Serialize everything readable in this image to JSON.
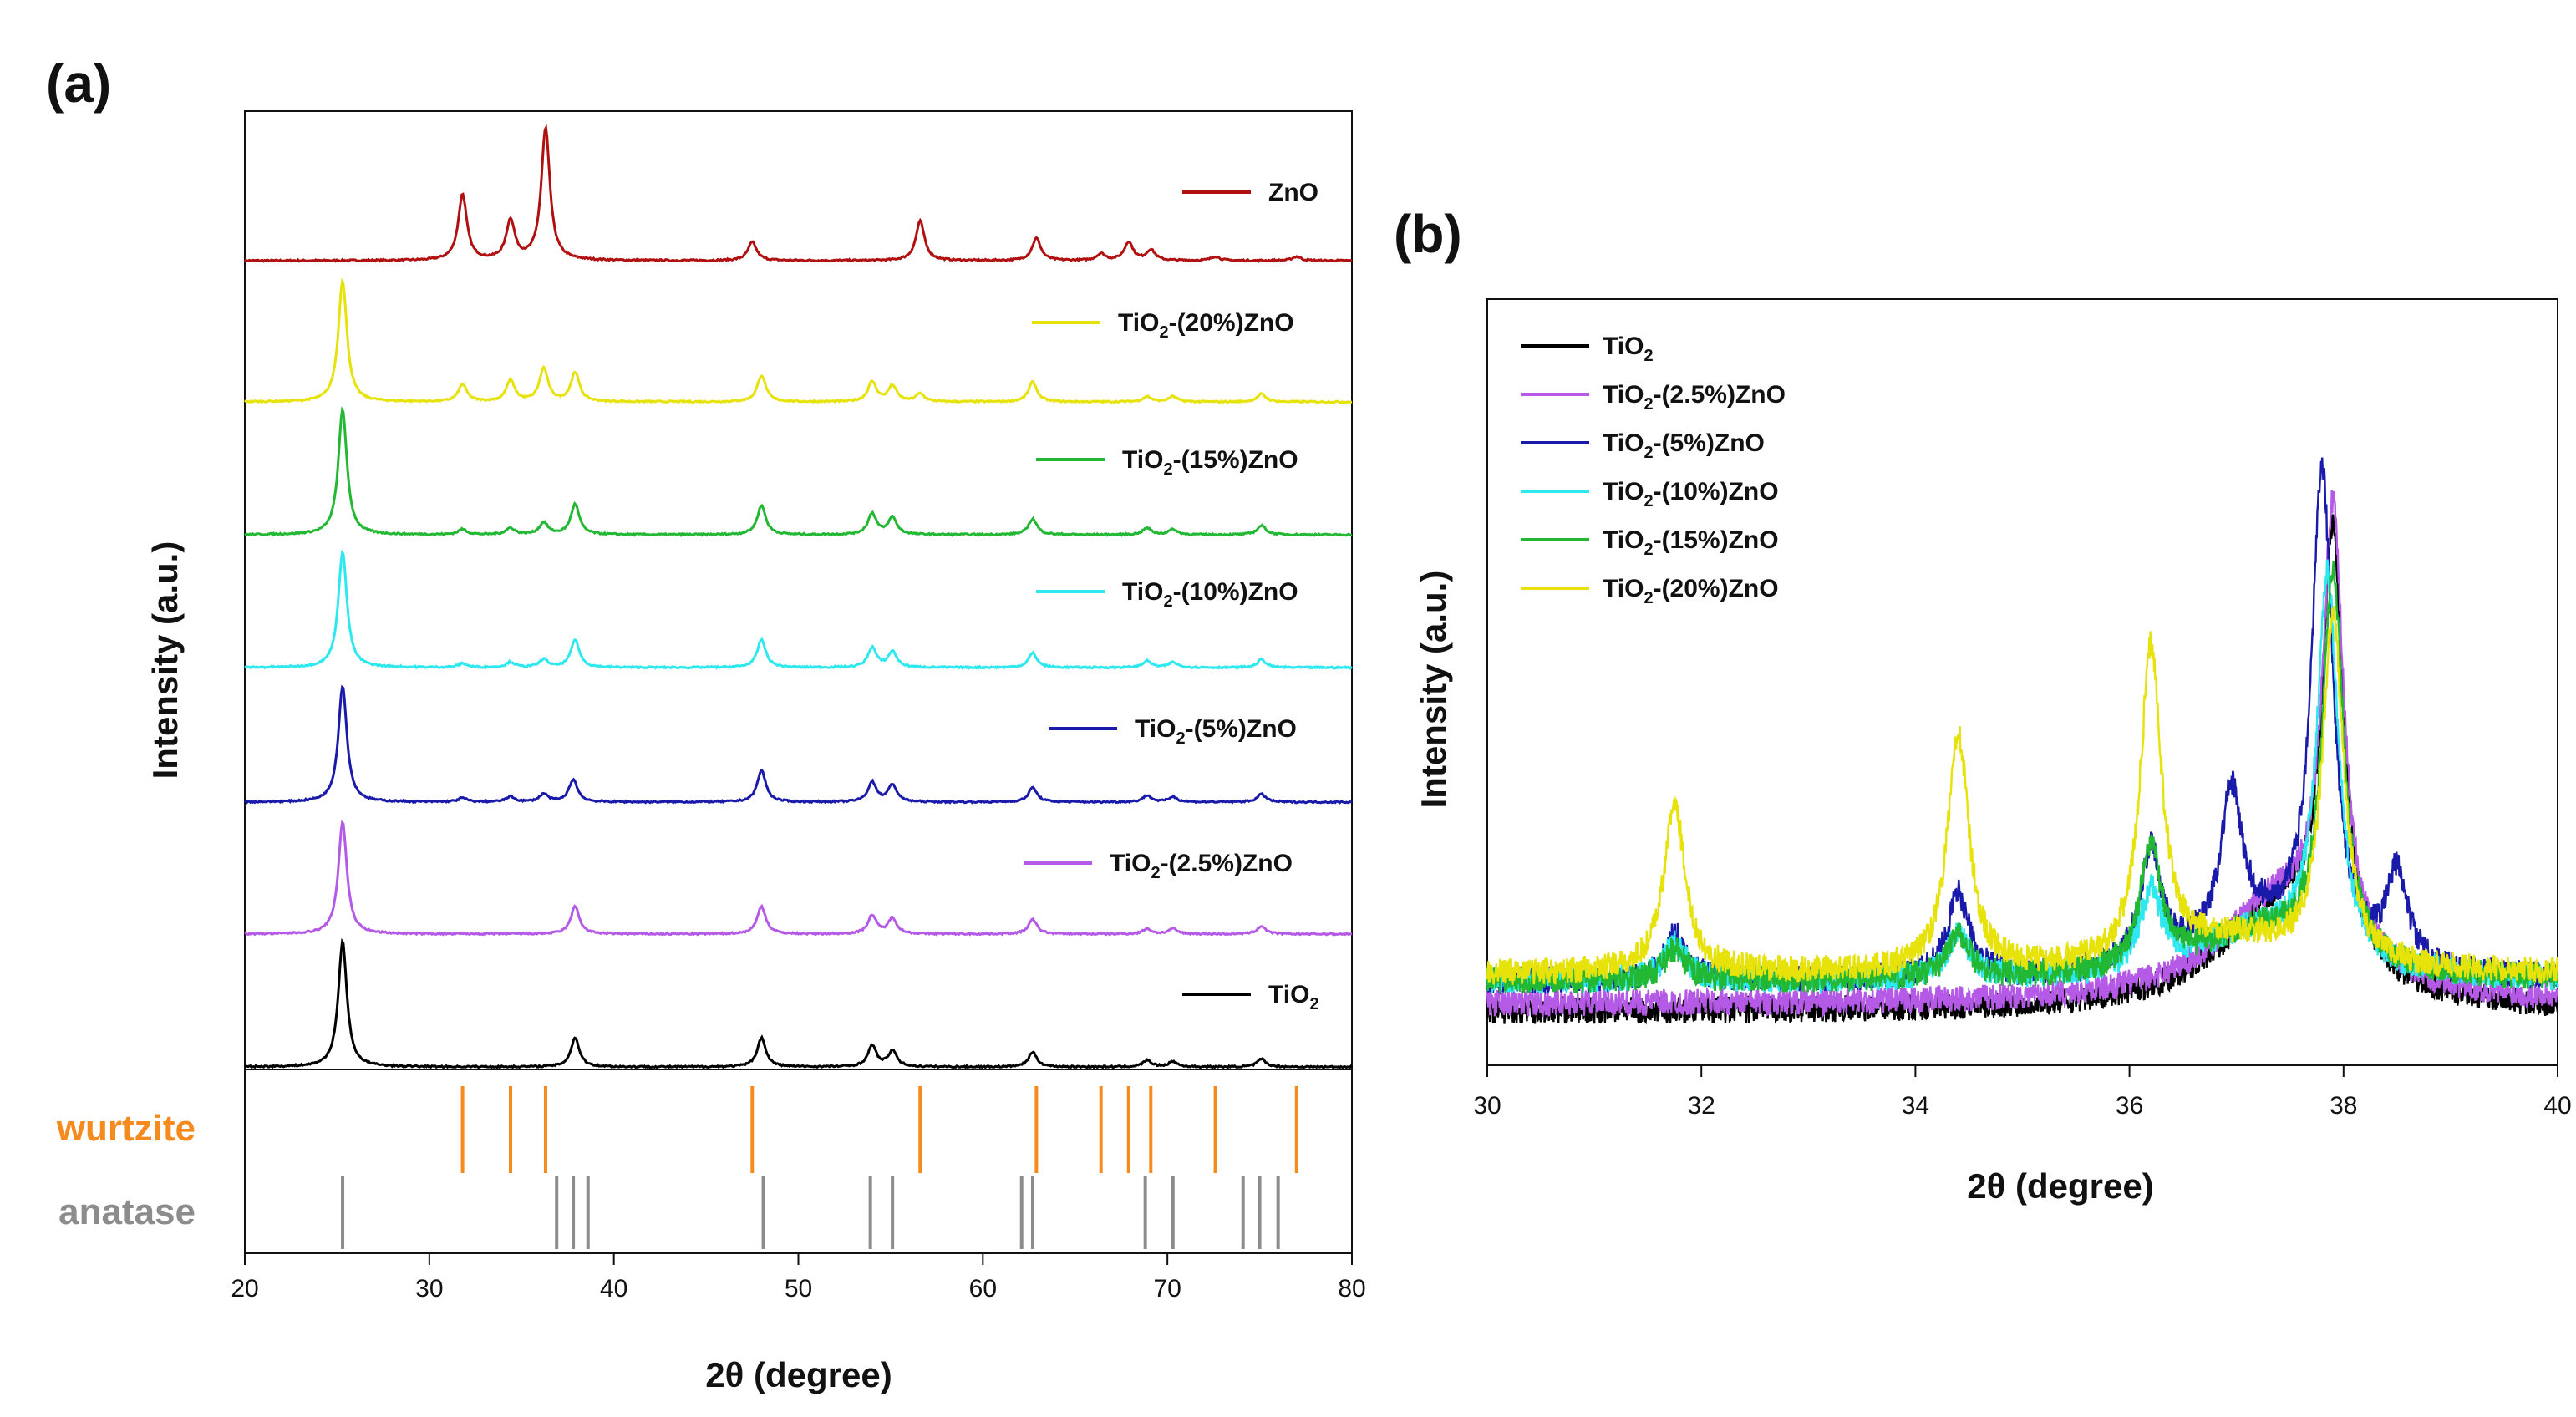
{
  "figure": {
    "panel_a_label": "(a)",
    "panel_b_label": "(b)"
  },
  "chart_data": [
    {
      "type": "line",
      "panel": "(a)",
      "xlabel": "2θ (degree)",
      "ylabel": "Intensity (a.u.)",
      "xlim": [
        20,
        80
      ],
      "xticks": [
        20,
        30,
        40,
        50,
        60,
        70,
        80
      ],
      "yticks_shown": false,
      "layout": "stacked-offset",
      "series": [
        {
          "name": "ZnO",
          "color": "#b01010",
          "name_main": "ZnO",
          "name_sub": "",
          "name_rest": "",
          "peaks": [
            [
              31.8,
              0.5
            ],
            [
              34.4,
              0.3
            ],
            [
              36.3,
              1.0
            ],
            [
              47.5,
              0.14
            ],
            [
              56.6,
              0.3
            ],
            [
              62.9,
              0.17
            ],
            [
              66.4,
              0.05
            ],
            [
              67.9,
              0.14
            ],
            [
              69.1,
              0.08
            ],
            [
              72.6,
              0.03
            ],
            [
              77.0,
              0.03
            ]
          ]
        },
        {
          "name": "TiO2-(20%)ZnO",
          "color": "#e6e20a",
          "name_main": "TiO",
          "name_sub": "2",
          "name_rest": "-(20%)ZnO",
          "peaks": [
            [
              25.3,
              0.92
            ],
            [
              31.8,
              0.13
            ],
            [
              34.4,
              0.16
            ],
            [
              36.2,
              0.25
            ],
            [
              37.9,
              0.22
            ],
            [
              48.0,
              0.2
            ],
            [
              54.0,
              0.15
            ],
            [
              55.1,
              0.12
            ],
            [
              56.6,
              0.06
            ],
            [
              62.7,
              0.15
            ],
            [
              68.9,
              0.04
            ],
            [
              70.3,
              0.04
            ],
            [
              75.1,
              0.06
            ]
          ]
        },
        {
          "name": "TiO2-(15%)ZnO",
          "color": "#22b833",
          "name_main": "TiO",
          "name_sub": "2",
          "name_rest": "-(15%)ZnO",
          "peaks": [
            [
              25.3,
              0.95
            ],
            [
              31.8,
              0.04
            ],
            [
              34.4,
              0.05
            ],
            [
              36.2,
              0.09
            ],
            [
              37.9,
              0.23
            ],
            [
              48.0,
              0.22
            ],
            [
              54.0,
              0.16
            ],
            [
              55.1,
              0.13
            ],
            [
              62.7,
              0.12
            ],
            [
              68.9,
              0.05
            ],
            [
              70.3,
              0.04
            ],
            [
              75.1,
              0.07
            ]
          ]
        },
        {
          "name": "TiO2-(10%)ZnO",
          "color": "#2ee8f0",
          "name_main": "TiO",
          "name_sub": "2",
          "name_rest": "-(10%)ZnO",
          "peaks": [
            [
              25.3,
              0.88
            ],
            [
              31.8,
              0.03
            ],
            [
              34.4,
              0.04
            ],
            [
              36.2,
              0.06
            ],
            [
              37.9,
              0.21
            ],
            [
              48.0,
              0.21
            ],
            [
              54.0,
              0.15
            ],
            [
              55.1,
              0.12
            ],
            [
              62.7,
              0.11
            ],
            [
              68.9,
              0.05
            ],
            [
              70.3,
              0.04
            ],
            [
              75.1,
              0.06
            ]
          ]
        },
        {
          "name": "TiO2-(5%)ZnO",
          "color": "#1a1aaa",
          "name_main": "TiO",
          "name_sub": "2",
          "name_rest": "-(5%)ZnO",
          "peaks": [
            [
              25.3,
              0.88
            ],
            [
              31.8,
              0.03
            ],
            [
              34.4,
              0.04
            ],
            [
              36.2,
              0.06
            ],
            [
              37.8,
              0.17
            ],
            [
              48.0,
              0.24
            ],
            [
              54.0,
              0.15
            ],
            [
              55.1,
              0.13
            ],
            [
              62.7,
              0.11
            ],
            [
              68.9,
              0.05
            ],
            [
              70.3,
              0.04
            ],
            [
              75.1,
              0.06
            ]
          ]
        },
        {
          "name": "TiO2-(2.5%)ZnO",
          "color": "#b45ae6",
          "name_main": "TiO",
          "name_sub": "2",
          "name_rest": "-(2.5%)ZnO",
          "peaks": [
            [
              25.3,
              0.85
            ],
            [
              37.9,
              0.21
            ],
            [
              48.0,
              0.21
            ],
            [
              54.0,
              0.14
            ],
            [
              55.1,
              0.12
            ],
            [
              62.7,
              0.11
            ],
            [
              68.9,
              0.04
            ],
            [
              70.3,
              0.04
            ],
            [
              75.1,
              0.06
            ]
          ]
        },
        {
          "name": "TiO2",
          "color": "#000000",
          "name_main": "TiO",
          "name_sub": "2",
          "name_rest": "",
          "peaks": [
            [
              25.3,
              0.95
            ],
            [
              37.9,
              0.22
            ],
            [
              48.0,
              0.22
            ],
            [
              54.0,
              0.16
            ],
            [
              55.1,
              0.12
            ],
            [
              62.7,
              0.11
            ],
            [
              68.9,
              0.05
            ],
            [
              70.3,
              0.04
            ],
            [
              75.1,
              0.06
            ]
          ]
        }
      ],
      "reference_patterns": [
        {
          "name": "wurtzite",
          "color": "#f58a1f",
          "positions": [
            31.8,
            34.4,
            36.3,
            47.5,
            56.6,
            62.9,
            66.4,
            67.9,
            69.1,
            72.6,
            77.0
          ]
        },
        {
          "name": "anatase",
          "color": "#8c8c8c",
          "positions": [
            25.3,
            36.9,
            37.8,
            38.6,
            48.1,
            53.9,
            55.1,
            62.1,
            62.7,
            68.8,
            70.3,
            74.1,
            75.0,
            76.0
          ]
        }
      ]
    },
    {
      "type": "line",
      "panel": "(b)",
      "xlabel": "2θ (degree)",
      "ylabel": "Intensity (a.u.)",
      "xlim": [
        30,
        40
      ],
      "xticks": [
        30,
        32,
        34,
        36,
        38,
        40
      ],
      "yticks_shown": false,
      "legend_position": "top-left",
      "series": [
        {
          "name": "TiO2",
          "color": "#000000",
          "name_main": "TiO",
          "name_sub": "2",
          "name_rest": "",
          "baseline": 0.09,
          "peaks": [
            [
              37.9,
              0.55
            ]
          ],
          "broad": [
            37.4,
            0.13
          ]
        },
        {
          "name": "TiO2-(2.5%)ZnO",
          "color": "#b45ae6",
          "name_main": "TiO",
          "name_sub": "2",
          "name_rest": "-(2.5%)ZnO",
          "baseline": 0.1,
          "peaks": [
            [
              37.9,
              0.57
            ]
          ],
          "broad": [
            37.4,
            0.13
          ]
        },
        {
          "name": "TiO2-(5%)ZnO",
          "color": "#1a1aaa",
          "name_main": "TiO",
          "name_sub": "2",
          "name_rest": "-(5%)ZnO",
          "baseline": 0.13,
          "peaks": [
            [
              31.75,
              0.06
            ],
            [
              34.4,
              0.11
            ],
            [
              36.2,
              0.15
            ],
            [
              36.95,
              0.19
            ],
            [
              37.8,
              0.63
            ],
            [
              38.5,
              0.12
            ]
          ],
          "broad": [
            37.2,
            0.06
          ]
        },
        {
          "name": "TiO2-(10%)ZnO",
          "color": "#2ee8f0",
          "name_main": "TiO",
          "name_sub": "2",
          "name_rest": "-(10%)ZnO",
          "baseline": 0.13,
          "peaks": [
            [
              31.75,
              0.05
            ],
            [
              34.4,
              0.06
            ],
            [
              36.2,
              0.1
            ],
            [
              37.85,
              0.5
            ]
          ],
          "broad": [
            37.2,
            0.06
          ]
        },
        {
          "name": "TiO2-(15%)ZnO",
          "color": "#22b833",
          "name_main": "TiO",
          "name_sub": "2",
          "name_rest": "-(15%)ZnO",
          "baseline": 0.13,
          "peaks": [
            [
              31.75,
              0.04
            ],
            [
              34.4,
              0.06
            ],
            [
              36.2,
              0.16
            ],
            [
              37.9,
              0.51
            ]
          ],
          "broad": [
            37.2,
            0.06
          ]
        },
        {
          "name": "TiO2-(20%)ZnO",
          "color": "#e6e20a",
          "name_main": "TiO",
          "name_sub": "2",
          "name_rest": "-(20%)ZnO",
          "baseline": 0.14,
          "peaks": [
            [
              31.75,
              0.22
            ],
            [
              34.4,
              0.31
            ],
            [
              36.2,
              0.41
            ],
            [
              37.9,
              0.45
            ]
          ],
          "broad": [
            37.0,
            0.04
          ]
        }
      ]
    }
  ]
}
